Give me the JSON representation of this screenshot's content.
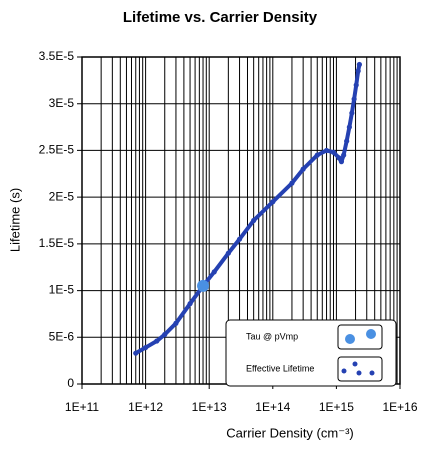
{
  "chart_data": {
    "type": "scatter",
    "title": "Lifetime vs. Carrier Density",
    "x_label": "Carrier Density (cm⁻³)",
    "y_label": "Lifetime (s)",
    "xscale": "log",
    "grid": true,
    "minor_grid": true,
    "legend_position": "lower right",
    "xlim": [
      100000000000.0,
      1e+16
    ],
    "xticks": [
      {
        "value": 100000000000.0,
        "label": "1E+11"
      },
      {
        "value": 1000000000000.0,
        "label": "1E+12"
      },
      {
        "value": 10000000000000.0,
        "label": "1E+13"
      },
      {
        "value": 100000000000000.0,
        "label": "1E+14"
      },
      {
        "value": 1000000000000000.0,
        "label": "1E+15"
      },
      {
        "value": 1e+16,
        "label": "1E+16"
      }
    ],
    "ylim": [
      0,
      3.5e-05
    ],
    "yticks": [
      0,
      {
        "value": 5e-06,
        "label": "5E-6"
      },
      {
        "value": 1e-05,
        "label": "1E-5"
      },
      {
        "value": 1.5e-05,
        "label": "1.5E-5"
      },
      {
        "value": 2e-05,
        "label": "2E-5"
      },
      {
        "value": 2.5e-05,
        "label": "2.5E-5"
      },
      {
        "value": 3e-05,
        "label": "3E-5"
      },
      {
        "value": 3.5e-05,
        "label": "3.5E-5"
      }
    ],
    "series": [
      {
        "name": "Tau @ pVmp",
        "color": "#4a90e2",
        "marker_size": 6,
        "x": [
          8000000000000.0
        ],
        "values": [
          1.05e-05
        ]
      },
      {
        "name": "Effective Lifetime",
        "color": "#2541b2",
        "marker_size": 2.6,
        "x": [
          700000000000.0,
          1000000000000.0,
          1500000000000.0,
          2000000000000.0,
          3000000000000.0,
          5000000000000.0,
          8000000000000.0,
          12000000000000.0,
          20000000000000.0,
          30000000000000.0,
          50000000000000.0,
          100000000000000.0,
          200000000000000.0,
          300000000000000.0,
          500000000000000.0,
          700000000000000.0,
          900000000000000.0,
          1100000000000000.0,
          1200000000000000.0,
          1300000000000000.0,
          1450000000000000.0,
          1600000000000000.0,
          1750000000000000.0,
          1900000000000000.0,
          2050000000000000.0,
          2200000000000000.0,
          2300000000000000.0
        ],
        "values": [
          3.3e-06,
          3.9e-06,
          4.6e-06,
          5.3e-06,
          6.5e-06,
          8.6e-06,
          1.05e-05,
          1.2e-05,
          1.4e-05,
          1.55e-05,
          1.75e-05,
          1.95e-05,
          2.15e-05,
          2.3e-05,
          2.45e-05,
          2.5e-05,
          2.48e-05,
          2.42e-05,
          2.38e-05,
          2.45e-05,
          2.6e-05,
          2.75e-05,
          2.9e-05,
          3.05e-05,
          3.2e-05,
          3.35e-05,
          3.42e-05
        ]
      }
    ]
  }
}
